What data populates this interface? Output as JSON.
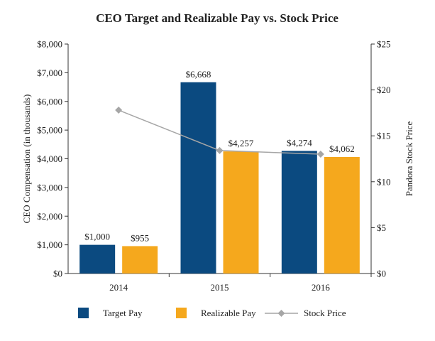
{
  "chart_data": {
    "type": "bar",
    "title": "CEO Target and Realizable Pay vs. Stock Price",
    "categories": [
      "2014",
      "2015",
      "2016"
    ],
    "series": [
      {
        "name": "Target Pay",
        "values": [
          1000,
          6668,
          4274
        ],
        "labels": [
          "$1,000",
          "$6,668",
          "$4,274"
        ],
        "color": "#0b4a80"
      },
      {
        "name": "Realizable Pay",
        "values": [
          955,
          4257,
          4062
        ],
        "labels": [
          "$955",
          "$4,257",
          "$4,062"
        ],
        "color": "#f5a81d"
      }
    ],
    "line_series": {
      "name": "Stock Price",
      "type": "line",
      "axis": "right",
      "values": [
        17.8,
        13.4,
        13.0
      ],
      "color": "#a6a6a6"
    },
    "ylabel": "CEO Compensation (in thousands)",
    "ylim": [
      0,
      8000
    ],
    "yticks": [
      0,
      1000,
      2000,
      3000,
      4000,
      5000,
      6000,
      7000,
      8000
    ],
    "ytick_labels": [
      "$0",
      "$1,000",
      "$2,000",
      "$3,000",
      "$4,000",
      "$5,000",
      "$6,000",
      "$7,000",
      "$8,000"
    ],
    "y2label": "Pandora Stock Price",
    "y2lim": [
      0,
      25
    ],
    "y2ticks": [
      0,
      5,
      10,
      15,
      20,
      25
    ],
    "y2tick_labels": [
      "$0",
      "$5",
      "$10",
      "$15",
      "$20",
      "$25"
    ],
    "legend": {
      "position": "bottom",
      "items": [
        "Target Pay",
        "Realizable Pay",
        "Stock Price"
      ]
    },
    "grid": false
  }
}
